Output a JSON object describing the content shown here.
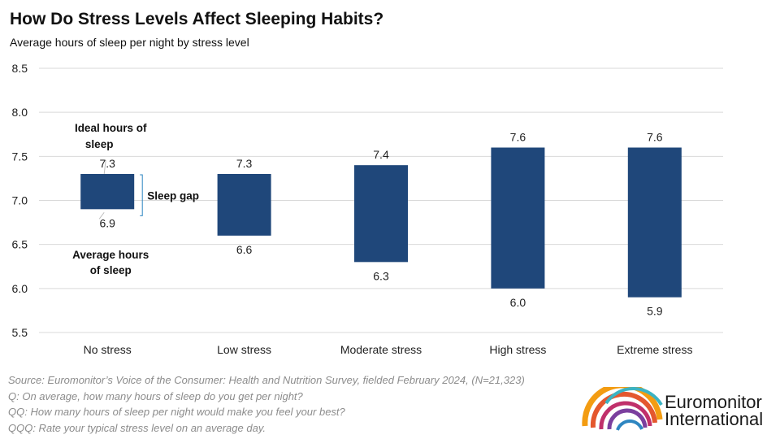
{
  "title": "How Do Stress Levels Affect Sleeping Habits?",
  "subtitle": "Average hours of sleep per night by stress level",
  "chart_data": {
    "type": "floating-bar",
    "categories": [
      "No stress",
      "Low stress",
      "Moderate stress",
      "High stress",
      "Extreme stress"
    ],
    "series": [
      {
        "name": "Ideal hours of sleep",
        "values": [
          7.3,
          7.3,
          7.4,
          7.6,
          7.6
        ],
        "value_labels": [
          "7.3",
          "7.3",
          "7.4",
          "7.6",
          "7.6"
        ]
      },
      {
        "name": "Average hours of sleep",
        "values": [
          6.9,
          6.6,
          6.3,
          6.0,
          5.9
        ],
        "value_labels": [
          "6.9",
          "6.6",
          "6.3",
          "6.0",
          "5.9"
        ]
      }
    ],
    "yticks": [
      "5.5",
      "6.0",
      "6.5",
      "7.0",
      "7.5",
      "8.0",
      "8.5"
    ],
    "ylim": [
      5.5,
      8.5
    ],
    "annotations": {
      "ideal": [
        "Ideal hours of",
        "sleep"
      ],
      "average": [
        "Average hours",
        "of sleep"
      ],
      "gap": "Sleep gap"
    },
    "bar_color": "#1f477a",
    "grid": true
  },
  "source_lines": [
    "Source: Euromonitor’s Voice of the Consumer: Health and Nutrition Survey, fielded February 2024, (N=21,323)",
    "Q: On average, how many hours of sleep do you get per night?",
    "QQ: How many hours of sleep per night would make you feel your best?",
    "QQQ: Rate your typical stress level on an average day."
  ],
  "logo": {
    "line1": "Euromonitor",
    "line2": "International"
  }
}
